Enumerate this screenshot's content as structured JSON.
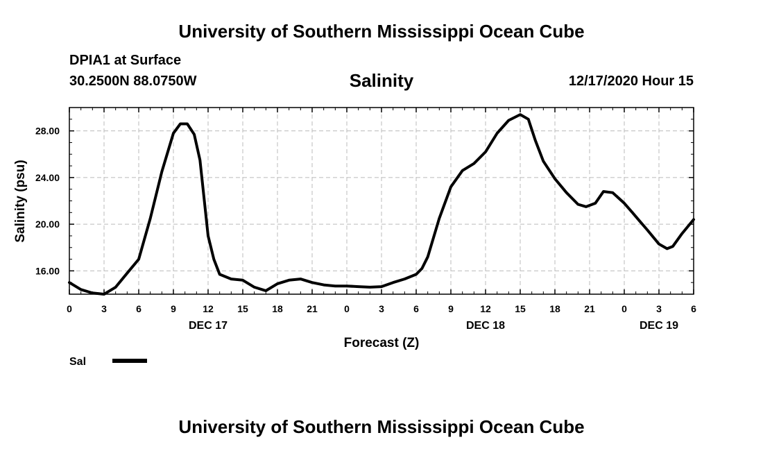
{
  "header": {
    "title_top": "University of Southern Mississippi Ocean Cube",
    "station": "DPIA1 at Surface",
    "coords": "30.2500N 88.0750W",
    "timestamp": "12/17/2020 Hour 15",
    "title_bottom": "University of Southern Mississippi Ocean Cube"
  },
  "chart_data": {
    "type": "line",
    "title": "Salinity",
    "xlabel": "Forecast (Z)",
    "ylabel": "Salinity (psu)",
    "xlim": [
      0,
      54
    ],
    "ylim": [
      14,
      30
    ],
    "grid": true,
    "x_unit": "hours from 2020-12-17 00Z",
    "x_ticks": [
      0,
      3,
      6,
      9,
      12,
      15,
      18,
      21,
      24,
      27,
      30,
      33,
      36,
      39,
      42,
      45,
      48,
      51,
      54
    ],
    "x_tick_labels": [
      "0",
      "3",
      "6",
      "9",
      "12",
      "15",
      "18",
      "21",
      "0",
      "3",
      "6",
      "9",
      "12",
      "15",
      "18",
      "21",
      "0",
      "3",
      "6"
    ],
    "day_labels": [
      {
        "x": 12,
        "label": "DEC 17"
      },
      {
        "x": 36,
        "label": "DEC 18"
      },
      {
        "x": 51,
        "label": "DEC 19"
      }
    ],
    "y_ticks": [
      16,
      20,
      24,
      28
    ],
    "y_tick_labels": [
      "16.00",
      "20.00",
      "24.00",
      "28.00"
    ],
    "legend": {
      "label": "Sal",
      "placement": "bottom-left"
    },
    "series": [
      {
        "name": "Sal",
        "color": "#000000",
        "x": [
          0,
          1,
          2,
          3,
          4,
          5,
          6,
          7,
          8,
          9,
          9.6,
          10.2,
          10.8,
          11.3,
          12,
          12.5,
          13,
          14,
          15,
          16,
          17,
          18,
          19,
          20,
          21,
          22,
          23,
          24,
          25,
          26,
          27,
          28,
          29,
          30,
          30.5,
          31,
          32,
          33,
          34,
          35,
          36,
          37,
          38,
          39,
          39.7,
          40.3,
          41,
          42,
          43,
          44,
          44.7,
          45.5,
          46.2,
          47,
          48,
          48.7,
          49.3,
          50,
          51,
          51.7,
          52.2,
          53,
          54
        ],
        "y": [
          15.0,
          14.4,
          14.1,
          14.0,
          14.6,
          15.8,
          17.0,
          20.5,
          24.5,
          27.8,
          28.6,
          28.6,
          27.7,
          25.5,
          19.0,
          17.0,
          15.7,
          15.3,
          15.2,
          14.6,
          14.3,
          14.9,
          15.2,
          15.3,
          15.0,
          14.8,
          14.7,
          14.7,
          14.65,
          14.6,
          14.65,
          15.0,
          15.3,
          15.7,
          16.2,
          17.2,
          20.5,
          23.2,
          24.6,
          25.2,
          26.2,
          27.8,
          28.9,
          29.4,
          29.0,
          27.2,
          25.4,
          23.9,
          22.7,
          21.7,
          21.5,
          21.8,
          22.8,
          22.7,
          21.8,
          21.0,
          20.3,
          19.5,
          18.3,
          17.9,
          18.1,
          19.2,
          20.4
        ]
      }
    ]
  }
}
